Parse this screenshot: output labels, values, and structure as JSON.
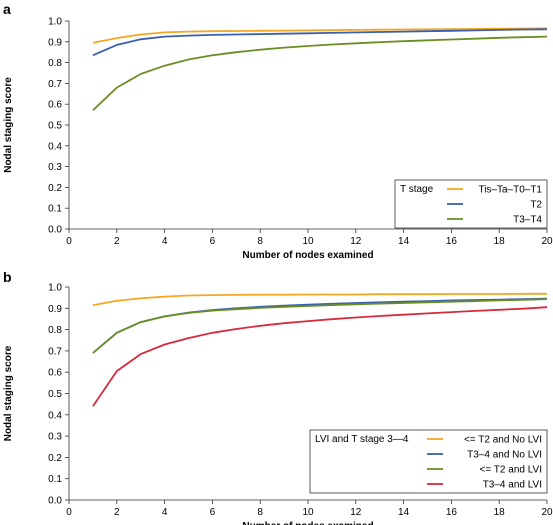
{
  "chart_data": [
    {
      "panel_label": "a",
      "type": "line",
      "xlabel": "Number of nodes examined",
      "ylabel": "Nodal staging score",
      "xlim": [
        0,
        20
      ],
      "ylim": [
        0,
        1.0
      ],
      "x_ticks": [
        0,
        2,
        4,
        6,
        8,
        10,
        12,
        14,
        16,
        18,
        20
      ],
      "y_ticks": [
        0.0,
        0.1,
        0.2,
        0.3,
        0.4,
        0.5,
        0.6,
        0.7,
        0.8,
        0.9,
        1.0
      ],
      "grid": false,
      "legend_title": "T stage",
      "legend_position": "lower-right",
      "x": [
        1,
        2,
        3,
        4,
        5,
        6,
        7,
        8,
        9,
        10,
        11,
        12,
        13,
        14,
        15,
        16,
        17,
        18,
        19,
        20
      ],
      "series": [
        {
          "name": "Tis–Ta–T0–T1",
          "color": "#f5a623",
          "values": [
            0.895,
            0.918,
            0.935,
            0.945,
            0.949,
            0.951,
            0.952,
            0.953,
            0.954,
            0.955,
            0.956,
            0.957,
            0.958,
            0.959,
            0.96,
            0.961,
            0.962,
            0.963,
            0.964,
            0.965
          ]
        },
        {
          "name": "T2",
          "color": "#3a5fb0",
          "values": [
            0.835,
            0.885,
            0.912,
            0.925,
            0.93,
            0.933,
            0.935,
            0.937,
            0.939,
            0.941,
            0.943,
            0.945,
            0.947,
            0.949,
            0.951,
            0.953,
            0.955,
            0.957,
            0.959,
            0.96
          ]
        },
        {
          "name": "T3–T4",
          "color": "#6b8e23",
          "values": [
            0.57,
            0.68,
            0.745,
            0.785,
            0.815,
            0.835,
            0.85,
            0.862,
            0.872,
            0.88,
            0.887,
            0.893,
            0.898,
            0.903,
            0.907,
            0.911,
            0.915,
            0.919,
            0.922,
            0.925
          ]
        }
      ]
    },
    {
      "panel_label": "b",
      "type": "line",
      "xlabel": "Number of nodes examined",
      "ylabel": "Nodal staging score",
      "xlim": [
        0,
        20
      ],
      "ylim": [
        0,
        1.0
      ],
      "x_ticks": [
        0,
        2,
        4,
        6,
        8,
        10,
        12,
        14,
        16,
        18,
        20
      ],
      "y_ticks": [
        0.0,
        0.1,
        0.2,
        0.3,
        0.4,
        0.5,
        0.6,
        0.7,
        0.8,
        0.9,
        1.0
      ],
      "grid": false,
      "legend_title": "LVI and T stage 3—4",
      "legend_position": "lower-right",
      "x": [
        1,
        2,
        3,
        4,
        5,
        6,
        7,
        8,
        9,
        10,
        11,
        12,
        13,
        14,
        15,
        16,
        17,
        18,
        19,
        20
      ],
      "series": [
        {
          "name": "<= T2 and No LVI",
          "color": "#f5a623",
          "values": [
            0.915,
            0.935,
            0.947,
            0.955,
            0.96,
            0.962,
            0.963,
            0.964,
            0.964,
            0.965,
            0.965,
            0.965,
            0.966,
            0.966,
            0.966,
            0.967,
            0.967,
            0.967,
            0.968,
            0.968
          ]
        },
        {
          "name": "T3–4 and No LVI",
          "color": "#3a5fb0",
          "values": [
            0.69,
            0.785,
            0.835,
            0.862,
            0.88,
            0.892,
            0.9,
            0.907,
            0.912,
            0.917,
            0.921,
            0.925,
            0.928,
            0.931,
            0.934,
            0.937,
            0.939,
            0.941,
            0.943,
            0.945
          ]
        },
        {
          "name": "<= T2 and LVI",
          "color": "#6b8e23",
          "values": [
            0.69,
            0.785,
            0.835,
            0.862,
            0.878,
            0.889,
            0.896,
            0.902,
            0.907,
            0.911,
            0.915,
            0.919,
            0.922,
            0.925,
            0.928,
            0.931,
            0.934,
            0.937,
            0.94,
            0.943
          ]
        },
        {
          "name": "T3–4 and LVI",
          "color": "#d62b3c",
          "values": [
            0.44,
            0.605,
            0.685,
            0.73,
            0.76,
            0.785,
            0.803,
            0.818,
            0.83,
            0.84,
            0.849,
            0.857,
            0.864,
            0.87,
            0.876,
            0.882,
            0.888,
            0.893,
            0.898,
            0.905
          ]
        }
      ]
    }
  ]
}
